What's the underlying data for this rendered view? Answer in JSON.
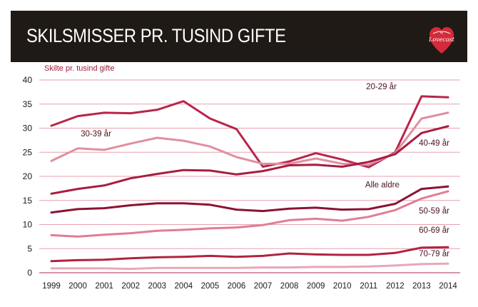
{
  "header": {
    "title": "SKILSMISSER PR. TUSIND GIFTE",
    "logo_text": "Lovecast",
    "logo_small_text": "by"
  },
  "colors": {
    "header_bg": "#1f1a15",
    "grid": "#e8a0ae",
    "axis": "#c0566f"
  },
  "chart_data": {
    "type": "line",
    "ylabel": "Skilte pr. tusind gifte",
    "xlabel": "",
    "ylim": [
      0,
      40
    ],
    "yticks": [
      0,
      5,
      10,
      15,
      20,
      25,
      30,
      35,
      40
    ],
    "grid": true,
    "x": [
      "1999",
      "2000",
      "2001",
      "2002",
      "2003",
      "2004",
      "2005",
      "2006",
      "2007",
      "2008",
      "2009",
      "2010",
      "2011",
      "2012",
      "2013",
      "2014"
    ],
    "series": [
      {
        "name": "20-29 år",
        "color": "#b8254a",
        "width": 3,
        "values": [
          30.5,
          32.5,
          33.2,
          33.1,
          33.8,
          35.6,
          32.0,
          29.8,
          22.0,
          23.1,
          24.8,
          23.5,
          21.9,
          25.0,
          36.6,
          36.4
        ]
      },
      {
        "name": "30-39 år",
        "color": "#df8fa0",
        "width": 3,
        "values": [
          23.2,
          25.8,
          25.5,
          26.8,
          28.0,
          27.4,
          26.2,
          24.0,
          22.6,
          22.6,
          23.7,
          22.6,
          22.4,
          24.8,
          32.0,
          33.2
        ]
      },
      {
        "name": "40-49 år",
        "color": "#a81c40",
        "width": 3,
        "values": [
          16.4,
          17.4,
          18.1,
          19.6,
          20.5,
          21.3,
          21.2,
          20.4,
          21.1,
          22.3,
          22.4,
          22.0,
          23.0,
          24.6,
          29.0,
          30.4
        ]
      },
      {
        "name": "Alle aldre",
        "color": "#8c1233",
        "width": 3,
        "values": [
          12.5,
          13.2,
          13.4,
          14.0,
          14.4,
          14.4,
          14.1,
          13.1,
          12.8,
          13.3,
          13.5,
          13.1,
          13.2,
          14.3,
          17.4,
          17.9
        ]
      },
      {
        "name": "50-59 år",
        "color": "#e07d94",
        "width": 3,
        "values": [
          7.8,
          7.5,
          7.9,
          8.2,
          8.7,
          8.9,
          9.2,
          9.4,
          9.9,
          10.9,
          11.2,
          10.8,
          11.6,
          13.0,
          15.4,
          16.9
        ]
      },
      {
        "name": "60-69 år",
        "color": "#b0233f",
        "width": 3,
        "values": [
          2.4,
          2.6,
          2.7,
          3.0,
          3.2,
          3.3,
          3.5,
          3.3,
          3.5,
          4.0,
          3.8,
          3.7,
          3.7,
          4.1,
          5.2,
          5.3
        ]
      },
      {
        "name": "70-79 år",
        "color": "#e9a7b6",
        "width": 3,
        "values": [
          0.9,
          0.9,
          0.9,
          0.8,
          1.0,
          1.0,
          1.0,
          1.0,
          1.1,
          1.1,
          1.2,
          1.2,
          1.3,
          1.5,
          1.8,
          1.9
        ]
      }
    ]
  }
}
